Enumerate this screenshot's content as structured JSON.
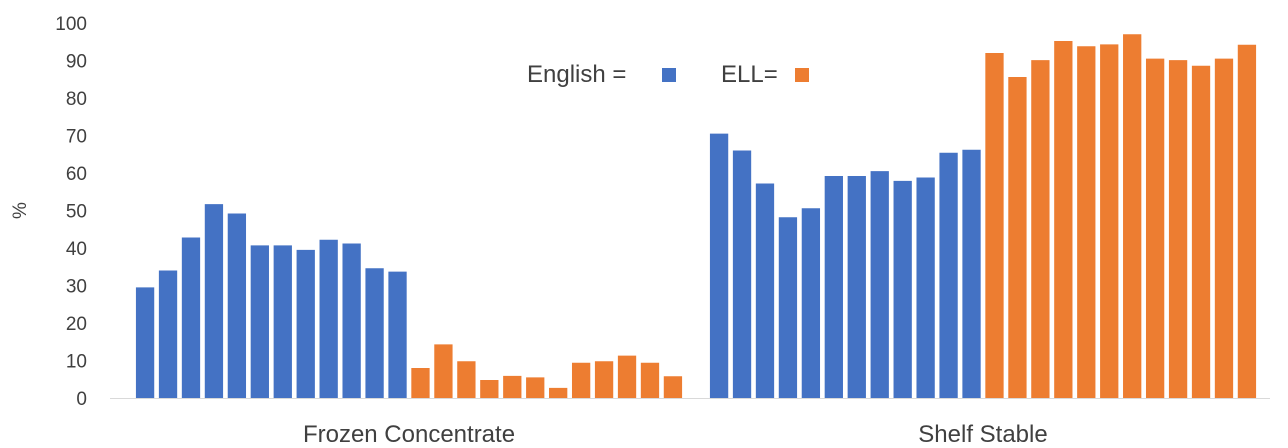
{
  "chart_data": {
    "type": "bar",
    "ylabel": "%",
    "ylim": [
      0,
      100
    ],
    "yticks": [
      "0",
      "10",
      "20",
      "30",
      "40",
      "50",
      "60",
      "70",
      "80",
      "90",
      "100"
    ],
    "groups": [
      {
        "label": "Frozen Concentrate",
        "series": [
          {
            "name": "English",
            "values": [
              29.5,
              34,
              42.8,
              51.7,
              49.2,
              40.7,
              40.7,
              39.5,
              42.2,
              41.2,
              34.6,
              33.7
            ]
          },
          {
            "name": "ELL",
            "values": [
              8,
              14.3,
              9.8,
              4.8,
              5.9,
              5.5,
              2.7,
              9.4,
              9.8,
              11.3,
              9.4,
              5.8
            ]
          }
        ]
      },
      {
        "label": "Shelf Stable",
        "series": [
          {
            "name": "English",
            "values": [
              70.5,
              66,
              57.2,
              48.2,
              50.6,
              59.2,
              59.2,
              60.5,
              57.9,
              58.8,
              65.4,
              66.2
            ]
          },
          {
            "name": "ELL",
            "values": [
              92,
              85.6,
              90.1,
              95.2,
              93.8,
              94.3,
              97,
              90.5,
              90.1,
              88.6,
              90.5,
              94.2
            ]
          }
        ]
      }
    ],
    "legend": [
      {
        "label": "English =",
        "color": "#4472c4"
      },
      {
        "label": "ELL=",
        "color": "#ed7d31"
      }
    ],
    "legend_position": "top-center",
    "grid": false
  }
}
